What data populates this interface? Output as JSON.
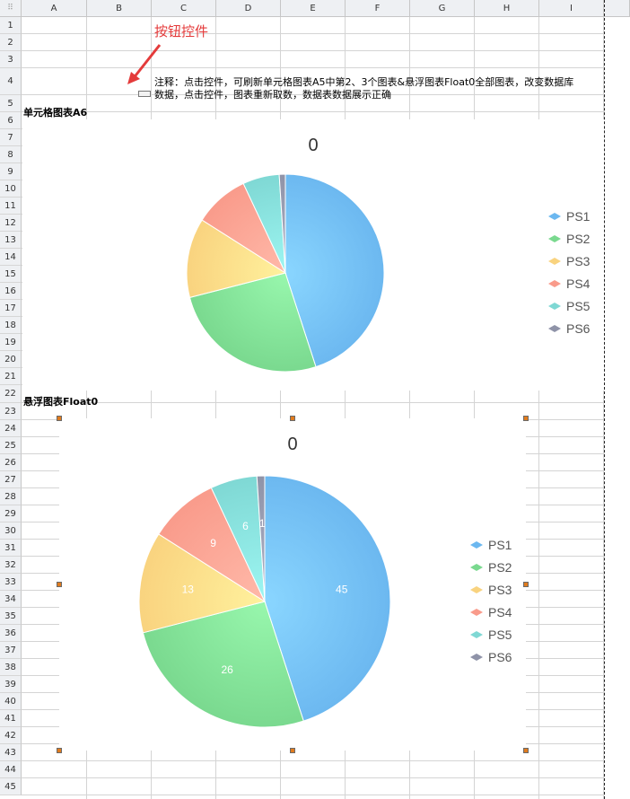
{
  "columns": [
    "A",
    "B",
    "C",
    "D",
    "E",
    "F",
    "G",
    "H",
    "I"
  ],
  "rows": [
    "1",
    "2",
    "3",
    "4",
    "5",
    "6",
    "7",
    "8",
    "9",
    "10",
    "11",
    "12",
    "13",
    "14",
    "15",
    "16",
    "17",
    "18",
    "19",
    "20",
    "21",
    "22",
    "23",
    "24",
    "25",
    "26",
    "27",
    "28",
    "29",
    "30",
    "31",
    "32",
    "33",
    "34",
    "35",
    "36",
    "37",
    "38",
    "39",
    "40",
    "41",
    "42",
    "43",
    "44",
    "45"
  ],
  "callout_label": "按钮控件",
  "annotation": {
    "line1": "注释：点击控件，可刷新单元格图表A5中第2、3个图表&悬浮图表Float0全部图表，改变数据库",
    "line2": "数据，点击控件，图表重新取数，数据表数据展示正确"
  },
  "cell_chart": {
    "section_label": "单元格图表A6",
    "chart_data": {
      "type": "pie",
      "title": "0",
      "categories": [
        "PS1",
        "PS2",
        "PS3",
        "PS4",
        "PS5",
        "PS6"
      ],
      "values": [
        45,
        26,
        13,
        9,
        6,
        1
      ],
      "colors": [
        "#6cb8f0",
        "#7ad98f",
        "#f9d37f",
        "#f99b8b",
        "#7fd8d4",
        "#8f93a8"
      ],
      "legend": "right",
      "data_labels": false
    }
  },
  "float_chart": {
    "section_label": "悬浮图表Float0",
    "chart_data": {
      "type": "pie",
      "title": "0",
      "categories": [
        "PS1",
        "PS2",
        "PS3",
        "PS4",
        "PS5",
        "PS6"
      ],
      "values": [
        45,
        26,
        13,
        9,
        6,
        1
      ],
      "colors": [
        "#6cb8f0",
        "#7ad98f",
        "#f9d37f",
        "#f99b8b",
        "#7fd8d4",
        "#8f93a8"
      ],
      "legend": "right",
      "data_labels": true
    }
  }
}
